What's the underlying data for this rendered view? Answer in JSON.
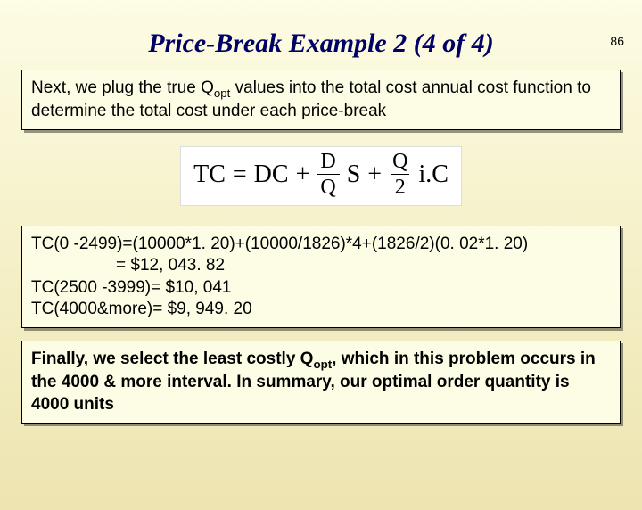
{
  "page_number": "86",
  "title": "Price-Break Example 2 (4 of 4)",
  "intro": {
    "part1": "Next, we plug the true Q",
    "sub1": "opt",
    "part2": " values into the total cost annual cost function to determine the total cost under each price-break"
  },
  "formula": {
    "lhs": "TC",
    "eq": "=",
    "t1": "DC",
    "plus": "+",
    "f1_num": "D",
    "f1_den": "Q",
    "t2": "S",
    "f2_num": "Q",
    "f2_den": "2",
    "t3": "i.C"
  },
  "calc": {
    "l1": "TC(0 -2499)=(10000*1. 20)+(10000/1826)*4+(1826/2)(0. 02*1. 20)",
    "l2": "                  = $12, 043. 82",
    "l3": "TC(2500 -3999)= $10, 041",
    "l4": "TC(4000&more)= $9, 949. 20"
  },
  "final": {
    "p1": "Finally, we select the least costly Q",
    "sub": "opt",
    "p2": ", which in this problem occurs in the 4000 & more interval.  In summary, our optimal  order quantity is 4000 units"
  },
  "style": {
    "title_color": "#000066",
    "bg_top": "#fdfce4",
    "bg_bottom": "#ede4b0",
    "box_bg": "#fdfce4",
    "shadow": "rgba(0,0,0,0.4)",
    "title_fontsize": 30,
    "body_fontsize": 19,
    "formula_fontsize": 28
  }
}
